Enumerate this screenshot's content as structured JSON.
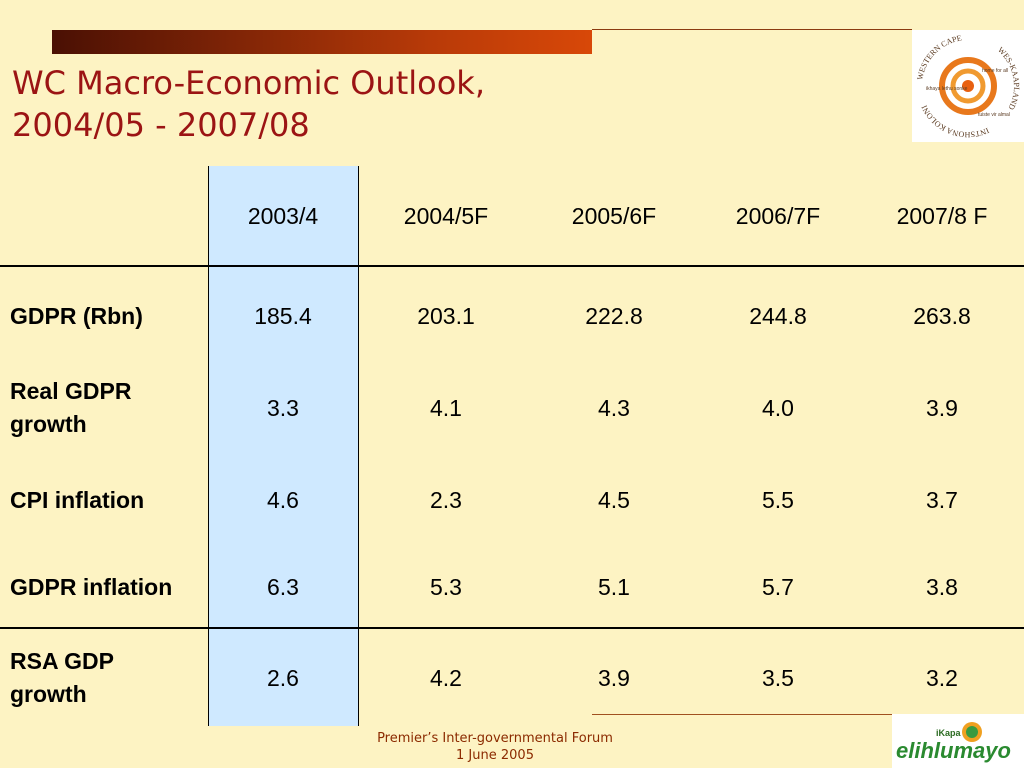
{
  "header": {
    "title_lines": [
      "WC Macro-Economic Outlook,",
      "2004/05 - 2007/08"
    ]
  },
  "logo": {
    "ring_text": [
      "WESTERN CAPE",
      "WES-KAAPLAND",
      "INTSHONA KOLONI"
    ],
    "inner_text": [
      "home for all",
      "tuiste vir almal",
      "ikhaya lethu sonke"
    ]
  },
  "table": {
    "columns": [
      "2003/4",
      "2004/5F",
      "2005/6F",
      "2006/7F",
      "2007/8 F"
    ],
    "rows": [
      {
        "label": "GDPR (Rbn)",
        "values": [
          "185.4",
          "203.1",
          "222.8",
          "244.8",
          "263.8"
        ]
      },
      {
        "label": "Real GDPR growth",
        "values": [
          "3.3",
          "4.1",
          "4.3",
          "4.0",
          "3.9"
        ]
      },
      {
        "label": "CPI inflation",
        "values": [
          "4.6",
          "2.3",
          "4.5",
          "5.5",
          "3.7"
        ]
      },
      {
        "label": "GDPR inflation",
        "values": [
          "6.3",
          "5.3",
          "5.1",
          "5.7",
          "3.8"
        ]
      },
      {
        "label": "RSA GDP growth",
        "values": [
          "2.6",
          "4.2",
          "3.9",
          "3.5",
          "3.2"
        ]
      }
    ]
  },
  "footer": {
    "lines": [
      "Premier’s Inter-governmental Forum",
      "1 June 2005"
    ]
  },
  "bottom_logo": {
    "small": "iKapa",
    "name": "elihlumayo"
  }
}
